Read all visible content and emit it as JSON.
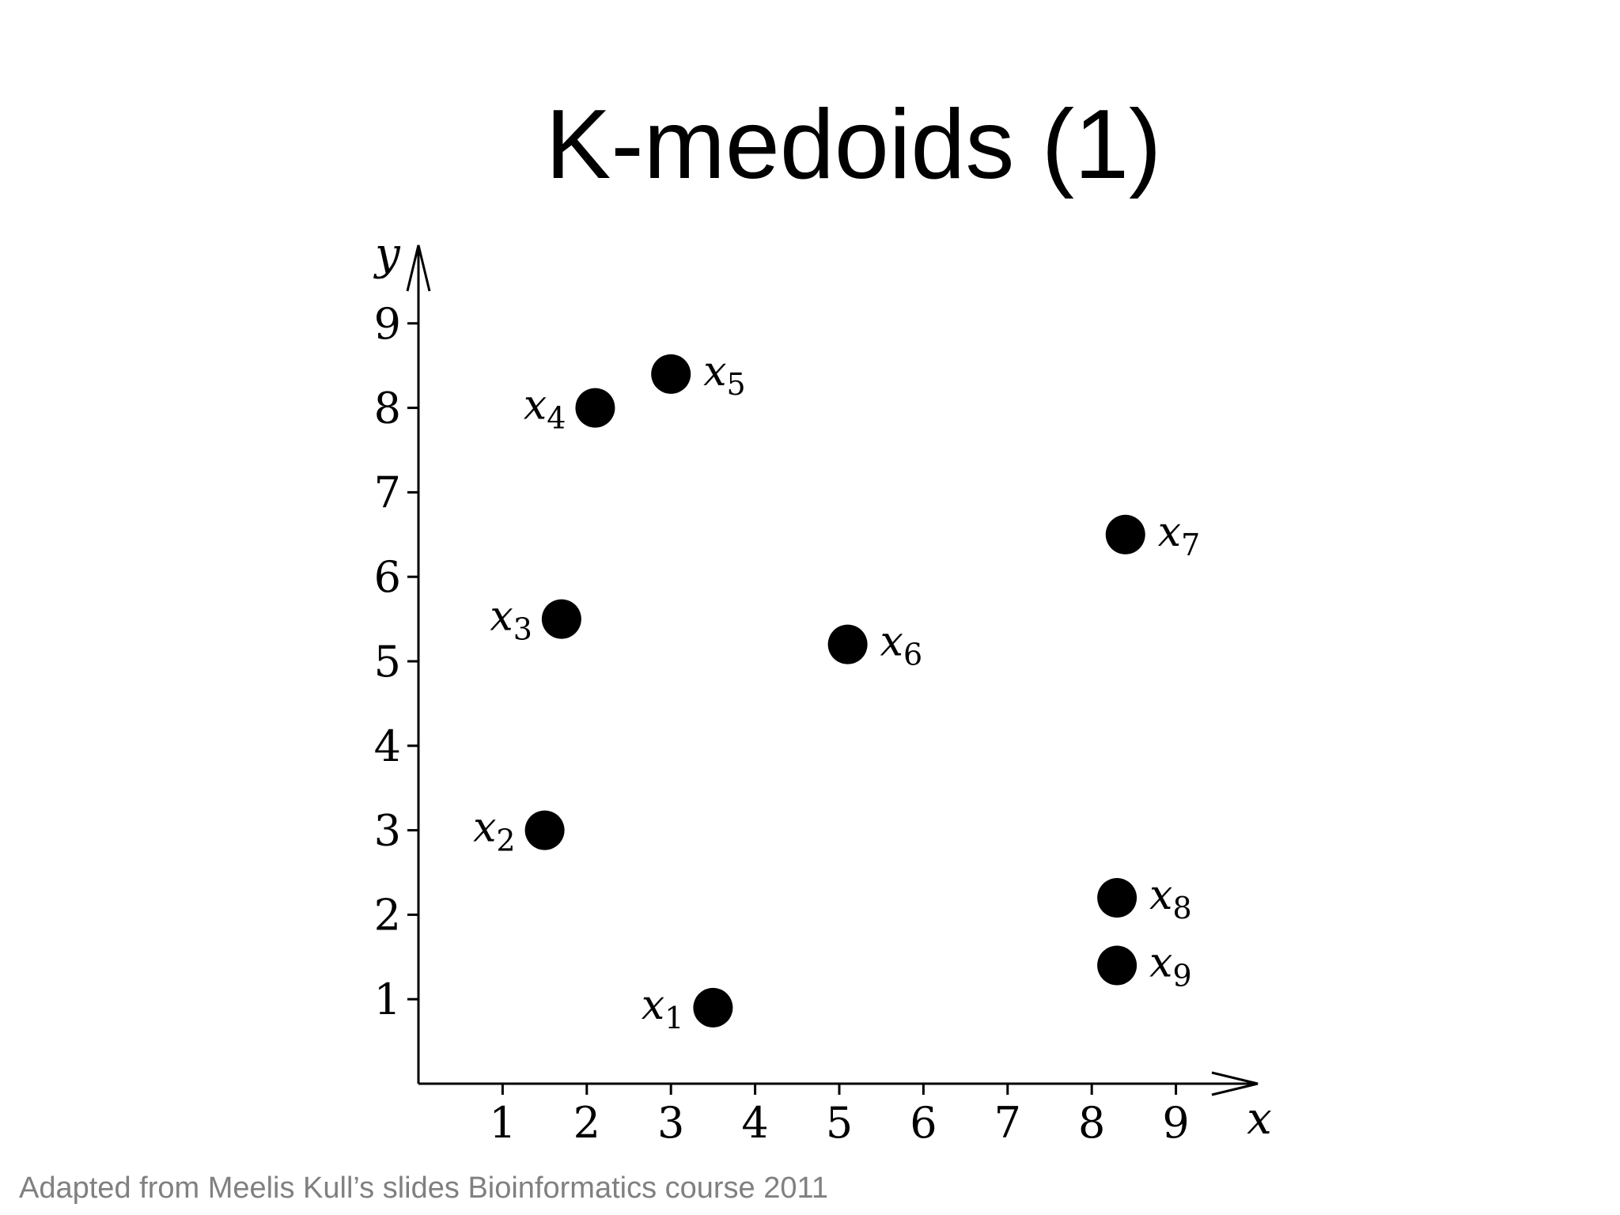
{
  "slide": {
    "title": "K-medoids (1)",
    "credit": "Adapted from Meelis Kull’s slides Bioinformatics course 2011"
  },
  "chart_data": {
    "type": "scatter",
    "xlabel": "x",
    "ylabel": "y",
    "xlim": [
      0,
      10
    ],
    "ylim": [
      0,
      10
    ],
    "xticks": [
      1,
      2,
      3,
      4,
      5,
      6,
      7,
      8,
      9
    ],
    "yticks": [
      1,
      2,
      3,
      4,
      5,
      6,
      7,
      8,
      9
    ],
    "grid": false,
    "points": [
      {
        "label": "x",
        "sub": "1",
        "x": 3.5,
        "y": 0.9,
        "label_side": "left"
      },
      {
        "label": "x",
        "sub": "2",
        "x": 1.5,
        "y": 3.0,
        "label_side": "left"
      },
      {
        "label": "x",
        "sub": "3",
        "x": 1.7,
        "y": 5.5,
        "label_side": "left"
      },
      {
        "label": "x",
        "sub": "4",
        "x": 2.1,
        "y": 8.0,
        "label_side": "left"
      },
      {
        "label": "x",
        "sub": "5",
        "x": 3.0,
        "y": 8.4,
        "label_side": "right"
      },
      {
        "label": "x",
        "sub": "6",
        "x": 5.1,
        "y": 5.2,
        "label_side": "right"
      },
      {
        "label": "x",
        "sub": "7",
        "x": 8.4,
        "y": 6.5,
        "label_side": "right"
      },
      {
        "label": "x",
        "sub": "8",
        "x": 8.3,
        "y": 2.2,
        "label_side": "right"
      },
      {
        "label": "x",
        "sub": "9",
        "x": 8.3,
        "y": 1.4,
        "label_side": "right"
      }
    ],
    "marker_color": "#000000"
  }
}
